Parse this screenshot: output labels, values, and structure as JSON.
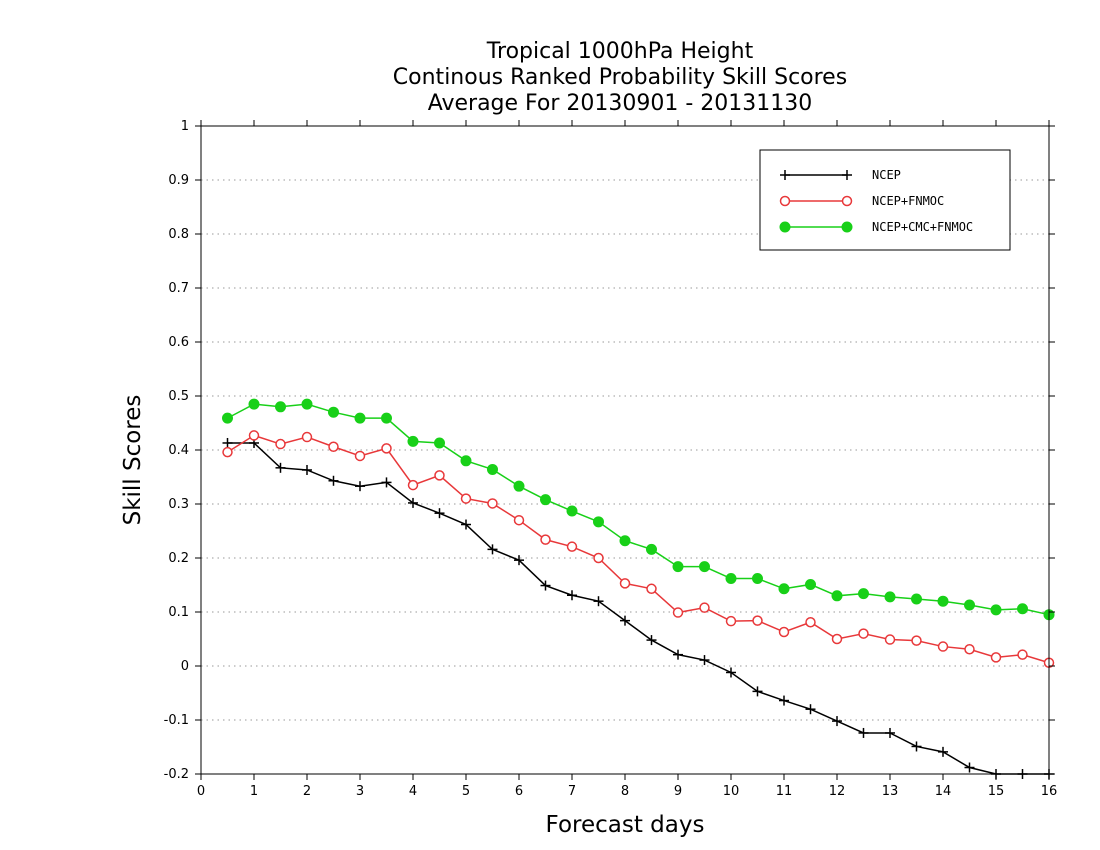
{
  "chart_data": {
    "type": "line",
    "title_lines": [
      "Tropical 1000hPa Height",
      "Continous Ranked Probability Skill Scores",
      "Average For 20130901 - 20131130"
    ],
    "xlabel": "Forecast days",
    "ylabel": "Skill Scores",
    "xlim": [
      0,
      16
    ],
    "ylim": [
      -0.2,
      1
    ],
    "x_ticks": [
      0,
      1,
      2,
      3,
      4,
      5,
      6,
      7,
      8,
      9,
      10,
      11,
      12,
      13,
      14,
      15,
      16
    ],
    "x_tick_labels": [
      "0",
      "1",
      "2",
      "3",
      "4",
      "5",
      "6",
      "7",
      "8",
      "9",
      "10",
      "11",
      "12",
      "13",
      "14",
      "15",
      "16"
    ],
    "y_ticks": [
      -0.2,
      -0.1,
      0,
      0.1,
      0.2,
      0.3,
      0.4,
      0.5,
      0.6,
      0.7,
      0.8,
      0.9,
      1
    ],
    "y_tick_labels": [
      "-0.2",
      "-0.1",
      "0",
      "0.1",
      "0.2",
      "0.3",
      "0.4",
      "0.5",
      "0.6",
      "0.7",
      "0.8",
      "0.9",
      "1"
    ],
    "grid": "horizontal-dotted",
    "legend_position": "top-right",
    "x": [
      0.5,
      1,
      1.5,
      2,
      2.5,
      3,
      3.5,
      4,
      4.5,
      5,
      5.5,
      6,
      6.5,
      7,
      7.5,
      8,
      8.5,
      9,
      9.5,
      10,
      10.5,
      11,
      11.5,
      12,
      12.5,
      13,
      13.5,
      14,
      14.5,
      15,
      15.5,
      16
    ],
    "series": [
      {
        "name": "NCEP",
        "color": "#000000",
        "marker": "plus",
        "values": [
          0.413,
          0.413,
          0.367,
          0.363,
          0.343,
          0.333,
          0.34,
          0.302,
          0.283,
          0.262,
          0.216,
          0.196,
          0.149,
          0.131,
          0.12,
          0.084,
          0.048,
          0.021,
          0.011,
          -0.012,
          -0.047,
          -0.064,
          -0.08,
          -0.102,
          -0.124,
          -0.124,
          -0.149,
          -0.159,
          -0.188,
          -0.2,
          -0.2,
          -0.2
        ]
      },
      {
        "name": "NCEP+FNMOC",
        "color": "#e8383a",
        "marker": "open-circle",
        "values": [
          0.396,
          0.427,
          0.411,
          0.424,
          0.406,
          0.389,
          0.403,
          0.335,
          0.353,
          0.31,
          0.301,
          0.27,
          0.234,
          0.221,
          0.2,
          0.153,
          0.143,
          0.099,
          0.108,
          0.083,
          0.084,
          0.063,
          0.081,
          0.05,
          0.06,
          0.049,
          0.047,
          0.036,
          0.031,
          0.016,
          0.021,
          0.006
        ]
      },
      {
        "name": "NCEP+CMC+FNMOC",
        "color": "#18d018",
        "marker": "filled-circle",
        "values": [
          0.459,
          0.485,
          0.48,
          0.485,
          0.47,
          0.459,
          0.459,
          0.416,
          0.413,
          0.38,
          0.364,
          0.333,
          0.308,
          0.287,
          0.267,
          0.232,
          0.216,
          0.184,
          0.184,
          0.162,
          0.162,
          0.143,
          0.151,
          0.13,
          0.134,
          0.128,
          0.124,
          0.12,
          0.113,
          0.104,
          0.106,
          0.095
        ]
      }
    ]
  }
}
